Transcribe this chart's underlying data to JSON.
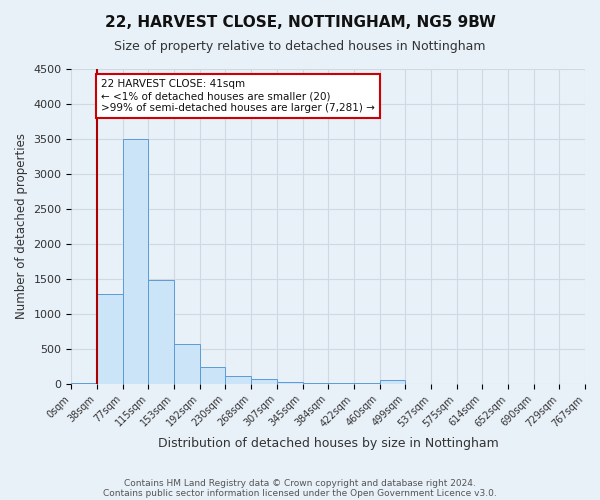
{
  "title": "22, HARVEST CLOSE, NOTTINGHAM, NG5 9BW",
  "subtitle": "Size of property relative to detached houses in Nottingham",
  "xlabel": "Distribution of detached houses by size in Nottingham",
  "ylabel": "Number of detached properties",
  "bin_labels": [
    "0sqm",
    "38sqm",
    "77sqm",
    "115sqm",
    "153sqm",
    "192sqm",
    "230sqm",
    "268sqm",
    "307sqm",
    "345sqm",
    "384sqm",
    "422sqm",
    "460sqm",
    "499sqm",
    "537sqm",
    "575sqm",
    "614sqm",
    "652sqm",
    "690sqm",
    "729sqm",
    "767sqm"
  ],
  "bin_values": [
    20,
    1280,
    3500,
    1480,
    570,
    240,
    120,
    75,
    30,
    15,
    10,
    8,
    50,
    5,
    0,
    0,
    0,
    0,
    0,
    0
  ],
  "bar_color": "#cce4f7",
  "bar_edge_color": "#5b9bd5",
  "background_color": "#e8f0f8",
  "grid_color": "#d0d8e4",
  "vline_color": "#aa0000",
  "annotation_text": "22 HARVEST CLOSE: 41sqm\n← <1% of detached houses are smaller (20)\n>99% of semi-detached houses are larger (7,281) →",
  "annotation_box_color": "#ffffff",
  "annotation_box_edge": "#cc0000",
  "ylim": [
    0,
    4500
  ],
  "yticks": [
    0,
    500,
    1000,
    1500,
    2000,
    2500,
    3000,
    3500,
    4000,
    4500
  ],
  "footnote1": "Contains HM Land Registry data © Crown copyright and database right 2024.",
  "footnote2": "Contains public sector information licensed under the Open Government Licence v3.0."
}
